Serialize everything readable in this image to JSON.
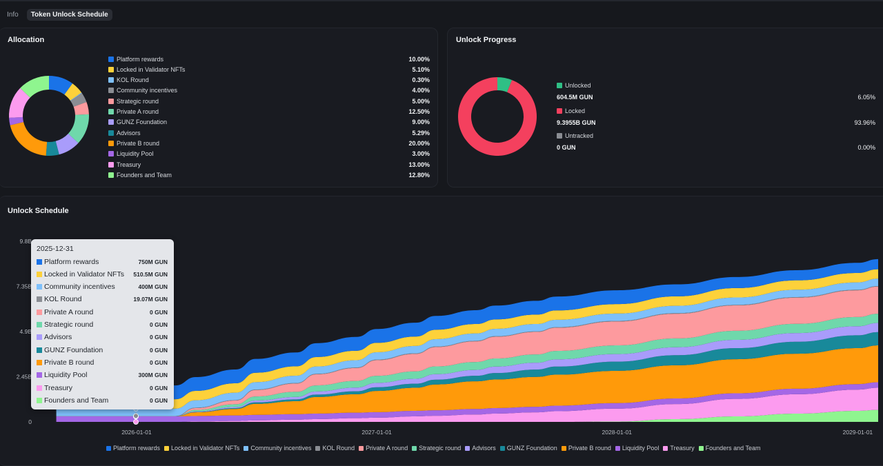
{
  "tabs": [
    {
      "label": "Info",
      "active": false
    },
    {
      "label": "Token Unlock Schedule",
      "active": true
    }
  ],
  "allocation": {
    "title": "Allocation",
    "items": [
      {
        "label": "Platform rewards",
        "value": "10.00%",
        "pct": 10.0,
        "color": "#1a73e8"
      },
      {
        "label": "Locked in Validator NFTs",
        "value": "5.10%",
        "pct": 5.1,
        "color": "#fdd13a"
      },
      {
        "label": "KOL Round",
        "value": "0.30%",
        "pct": 0.3,
        "color": "#7ec0fb"
      },
      {
        "label": "Community incentives",
        "value": "4.00%",
        "pct": 4.0,
        "color": "#8a8d93"
      },
      {
        "label": "Strategic round",
        "value": "5.00%",
        "pct": 5.0,
        "color": "#fd9a9e"
      },
      {
        "label": "Private A round",
        "value": "12.50%",
        "pct": 12.5,
        "color": "#6fd8ab"
      },
      {
        "label": "GUNZ Foundation",
        "value": "9.00%",
        "pct": 9.0,
        "color": "#a99cfb"
      },
      {
        "label": "Advisors",
        "value": "5.29%",
        "pct": 5.29,
        "color": "#18899a"
      },
      {
        "label": "Private B round",
        "value": "20.00%",
        "pct": 20.0,
        "color": "#ff9a0a"
      },
      {
        "label": "Liquidity Pool",
        "value": "3.00%",
        "pct": 3.0,
        "color": "#a467e6"
      },
      {
        "label": "Treasury",
        "value": "13.00%",
        "pct": 13.0,
        "color": "#fc9bef"
      },
      {
        "label": "Founders and Team",
        "value": "12.80%",
        "pct": 12.8,
        "color": "#8ff58f"
      }
    ]
  },
  "progress": {
    "title": "Unlock Progress",
    "items": [
      {
        "label": "Unlocked",
        "amount": "604.5M GUN",
        "value": "6.05%",
        "pct": 6.05,
        "color": "#2fbf85"
      },
      {
        "label": "Locked",
        "amount": "9.3955B GUN",
        "value": "93.96%",
        "pct": 93.96,
        "color": "#f4405e"
      },
      {
        "label": "Untracked",
        "amount": "0 GUN",
        "value": "0.00%",
        "pct": 0.0,
        "color": "#8a8d93"
      }
    ]
  },
  "schedule": {
    "title": "Unlock Schedule",
    "tooltip": {
      "date": "2025-12-31",
      "rows": [
        {
          "label": "Platform rewards",
          "value": "750M GUN",
          "color": "#1a73e8"
        },
        {
          "label": "Locked in Validator NFTs",
          "value": "510.5M GUN",
          "color": "#fdd13a"
        },
        {
          "label": "Community incentives",
          "value": "400M GUN",
          "color": "#7ec0fb"
        },
        {
          "label": "KOL Round",
          "value": "19.07M GUN",
          "color": "#8a8d93"
        },
        {
          "label": "Private A round",
          "value": "0 GUN",
          "color": "#fd9a9e"
        },
        {
          "label": "Strategic round",
          "value": "0 GUN",
          "color": "#6fd8ab"
        },
        {
          "label": "Advisors",
          "value": "0 GUN",
          "color": "#a99cfb"
        },
        {
          "label": "GUNZ Foundation",
          "value": "0 GUN",
          "color": "#18899a"
        },
        {
          "label": "Private B round",
          "value": "0 GUN",
          "color": "#ff9a0a"
        },
        {
          "label": "Liquidity Pool",
          "value": "300M GUN",
          "color": "#a467e6"
        },
        {
          "label": "Treasury",
          "value": "0 GUN",
          "color": "#fc9bef"
        },
        {
          "label": "Founders and Team",
          "value": "0 GUN",
          "color": "#8ff58f"
        }
      ]
    },
    "legend": [
      {
        "label": "Platform rewards",
        "color": "#1a73e8"
      },
      {
        "label": "Locked in Validator NFTs",
        "color": "#fdd13a"
      },
      {
        "label": "Community incentives",
        "color": "#7ec0fb"
      },
      {
        "label": "KOL Round",
        "color": "#8a8d93"
      },
      {
        "label": "Private A round",
        "color": "#fd9a9e"
      },
      {
        "label": "Strategic round",
        "color": "#6fd8ab"
      },
      {
        "label": "Advisors",
        "color": "#a99cfb"
      },
      {
        "label": "GUNZ Foundation",
        "color": "#18899a"
      },
      {
        "label": "Private B round",
        "color": "#ff9a0a"
      },
      {
        "label": "Liquidity Pool",
        "color": "#a467e6"
      },
      {
        "label": "Treasury",
        "color": "#fc9bef"
      },
      {
        "label": "Founders and Team",
        "color": "#8ff58f"
      }
    ]
  },
  "chart_data": [
    {
      "type": "pie",
      "title": "Allocation",
      "donut": true,
      "categories": [
        "Platform rewards",
        "Locked in Validator NFTs",
        "KOL Round",
        "Community incentives",
        "Strategic round",
        "Private A round",
        "GUNZ Foundation",
        "Advisors",
        "Private B round",
        "Liquidity Pool",
        "Treasury",
        "Founders and Team"
      ],
      "values": [
        10.0,
        5.1,
        0.3,
        4.0,
        5.0,
        12.5,
        9.0,
        5.29,
        20.0,
        3.0,
        13.0,
        12.8
      ],
      "unit": "%"
    },
    {
      "type": "pie",
      "title": "Unlock Progress",
      "donut": true,
      "categories": [
        "Unlocked",
        "Locked",
        "Untracked"
      ],
      "values": [
        6.05,
        93.96,
        0.0
      ],
      "unit": "%"
    },
    {
      "type": "area",
      "stacked": true,
      "title": "Unlock Schedule",
      "xlabel": "",
      "ylabel": "",
      "x_ticks": [
        "2026-01-01",
        "2027-01-01",
        "2028-01-01",
        "2029-01-01"
      ],
      "y_ticks": [
        "0",
        "2.45B",
        "4.9B",
        "7.35B",
        "9.8B"
      ],
      "ylim": [
        0,
        9.8
      ],
      "y_unit": "B GUN",
      "x": [
        "2025-09-01",
        "2025-12-31",
        "2026-03-01",
        "2026-04-01",
        "2026-06-01",
        "2026-07-01",
        "2026-09-01",
        "2026-10-01",
        "2026-12-01",
        "2027-01-01",
        "2027-03-01",
        "2027-04-01",
        "2027-06-01",
        "2027-07-01",
        "2027-09-01",
        "2027-10-01",
        "2028-01-01",
        "2028-04-01",
        "2028-07-01",
        "2028-10-01",
        "2029-01-01",
        "2029-02-01"
      ],
      "legend_position": "bottom",
      "series": [
        {
          "name": "Founders and Team",
          "values": [
            0,
            0,
            0,
            0,
            0,
            0,
            0,
            0,
            0,
            0,
            0,
            0,
            0,
            0,
            0,
            0,
            0.02,
            0.15,
            0.3,
            0.45,
            0.6,
            0.65
          ]
        },
        {
          "name": "Treasury",
          "values": [
            0,
            0,
            0,
            0.02,
            0.05,
            0.08,
            0.12,
            0.15,
            0.2,
            0.23,
            0.3,
            0.33,
            0.4,
            0.45,
            0.52,
            0.58,
            0.7,
            0.82,
            0.95,
            1.05,
            1.15,
            1.2
          ]
        },
        {
          "name": "Liquidity Pool",
          "values": [
            0.3,
            0.3,
            0.3,
            0.3,
            0.3,
            0.3,
            0.3,
            0.3,
            0.3,
            0.3,
            0.3,
            0.3,
            0.3,
            0.3,
            0.3,
            0.3,
            0.3,
            0.3,
            0.3,
            0.3,
            0.3,
            0.3
          ]
        },
        {
          "name": "Private B round",
          "values": [
            0,
            0,
            0,
            0.2,
            0.35,
            0.6,
            0.7,
            0.9,
            1.0,
            1.15,
            1.25,
            1.4,
            1.5,
            1.55,
            1.62,
            1.68,
            1.75,
            1.8,
            1.85,
            1.9,
            1.95,
            2.0
          ]
        },
        {
          "name": "GUNZ Foundation",
          "values": [
            0,
            0,
            0,
            0.02,
            0.05,
            0.08,
            0.1,
            0.13,
            0.16,
            0.2,
            0.22,
            0.26,
            0.3,
            0.35,
            0.4,
            0.44,
            0.5,
            0.55,
            0.6,
            0.65,
            0.7,
            0.72
          ]
        },
        {
          "name": "Advisors",
          "values": [
            0,
            0,
            0,
            0.03,
            0.06,
            0.1,
            0.13,
            0.17,
            0.2,
            0.24,
            0.27,
            0.3,
            0.32,
            0.35,
            0.37,
            0.39,
            0.41,
            0.43,
            0.45,
            0.47,
            0.49,
            0.5
          ]
        },
        {
          "name": "Strategic round",
          "values": [
            0,
            0,
            0,
            0.08,
            0.15,
            0.22,
            0.28,
            0.33,
            0.36,
            0.38,
            0.4,
            0.42,
            0.43,
            0.44,
            0.45,
            0.46,
            0.47,
            0.48,
            0.49,
            0.5,
            0.5,
            0.5
          ]
        },
        {
          "name": "Private A round",
          "values": [
            0,
            0,
            0,
            0.1,
            0.2,
            0.35,
            0.45,
            0.6,
            0.7,
            0.85,
            0.95,
            1.05,
            1.12,
            1.18,
            1.22,
            1.26,
            1.3,
            1.34,
            1.38,
            1.42,
            1.45,
            1.47
          ]
        },
        {
          "name": "KOL Round",
          "values": [
            0.019,
            0.019,
            0.019,
            0.022,
            0.024,
            0.026,
            0.027,
            0.028,
            0.029,
            0.03,
            0.03,
            0.03,
            0.03,
            0.03,
            0.03,
            0.03,
            0.03,
            0.03,
            0.03,
            0.03,
            0.03,
            0.03
          ]
        },
        {
          "name": "Community incentives",
          "values": [
            0.4,
            0.4,
            0.4,
            0.4,
            0.4,
            0.4,
            0.4,
            0.4,
            0.4,
            0.4,
            0.4,
            0.4,
            0.4,
            0.4,
            0.4,
            0.4,
            0.4,
            0.4,
            0.4,
            0.4,
            0.4,
            0.4
          ]
        },
        {
          "name": "Locked in Validator NFTs",
          "values": [
            0.51,
            0.51,
            0.51,
            0.51,
            0.51,
            0.51,
            0.51,
            0.51,
            0.51,
            0.51,
            0.51,
            0.51,
            0.51,
            0.51,
            0.51,
            0.51,
            0.51,
            0.51,
            0.51,
            0.51,
            0.51,
            0.51
          ]
        },
        {
          "name": "Platform rewards",
          "values": [
            0.75,
            0.75,
            0.75,
            0.75,
            0.75,
            0.75,
            0.75,
            0.75,
            0.75,
            0.75,
            0.75,
            0.75,
            0.75,
            0.75,
            0.75,
            0.75,
            0.75,
            0.65,
            0.6,
            0.55,
            0.55,
            0.55
          ]
        }
      ]
    }
  ]
}
